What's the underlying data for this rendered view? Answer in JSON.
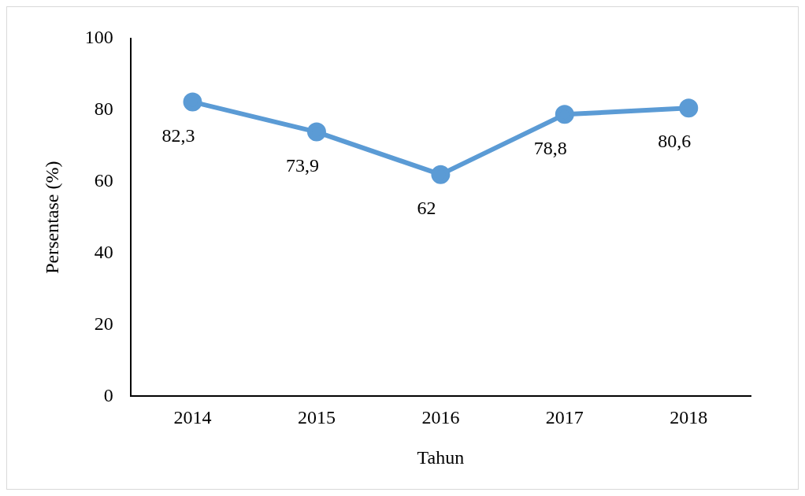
{
  "chart_data": {
    "type": "line",
    "xlabel": "Tahun",
    "ylabel": "Persentase (%)",
    "categories": [
      "2014",
      "2015",
      "2016",
      "2017",
      "2018"
    ],
    "series": [
      {
        "color": "#5b9bd5",
        "values": [
          82.3,
          73.9,
          62,
          78.8,
          80.6
        ],
        "value_labels": [
          "82,3",
          "73,9",
          "62",
          "78,8",
          "80,6"
        ]
      }
    ],
    "ylim": [
      0,
      100
    ],
    "yticks": [
      0,
      20,
      40,
      60,
      80,
      100
    ],
    "grid": false,
    "legend": false,
    "marker": "circle",
    "line_style": "solid"
  }
}
